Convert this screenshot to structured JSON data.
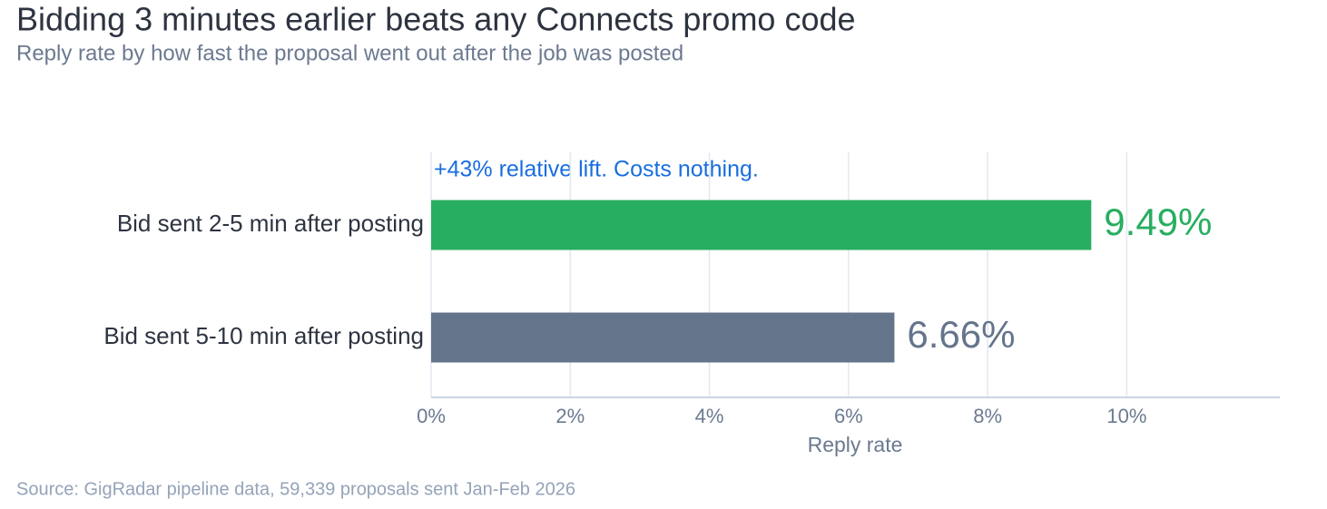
{
  "chart_data": {
    "type": "hbar",
    "title": "Bidding 3 minutes earlier beats any Connects promo code",
    "subtitle": "Reply rate by how fast the proposal went out after the job was posted",
    "annotation": "+43% relative lift. Costs nothing.",
    "xlabel": "Reply rate",
    "source": "Source: GigRadar pipeline data, 59,339 proposals sent Jan-Feb 2026",
    "categories": [
      "Bid sent 2-5 min after posting",
      "Bid sent 5-10 min after posting"
    ],
    "values": [
      9.49,
      6.66
    ],
    "value_labels": [
      "9.49%",
      "6.66%"
    ],
    "colors": [
      "#27ae60",
      "#64748b"
    ],
    "xlim": [
      0,
      12.2
    ],
    "xticks": [
      {
        "value": 0,
        "label": "0%"
      },
      {
        "value": 2,
        "label": "2%"
      },
      {
        "value": 4,
        "label": "4%"
      },
      {
        "value": 6,
        "label": "6%"
      },
      {
        "value": 8,
        "label": "8%"
      },
      {
        "value": 10,
        "label": "10%"
      }
    ],
    "grid": true
  }
}
